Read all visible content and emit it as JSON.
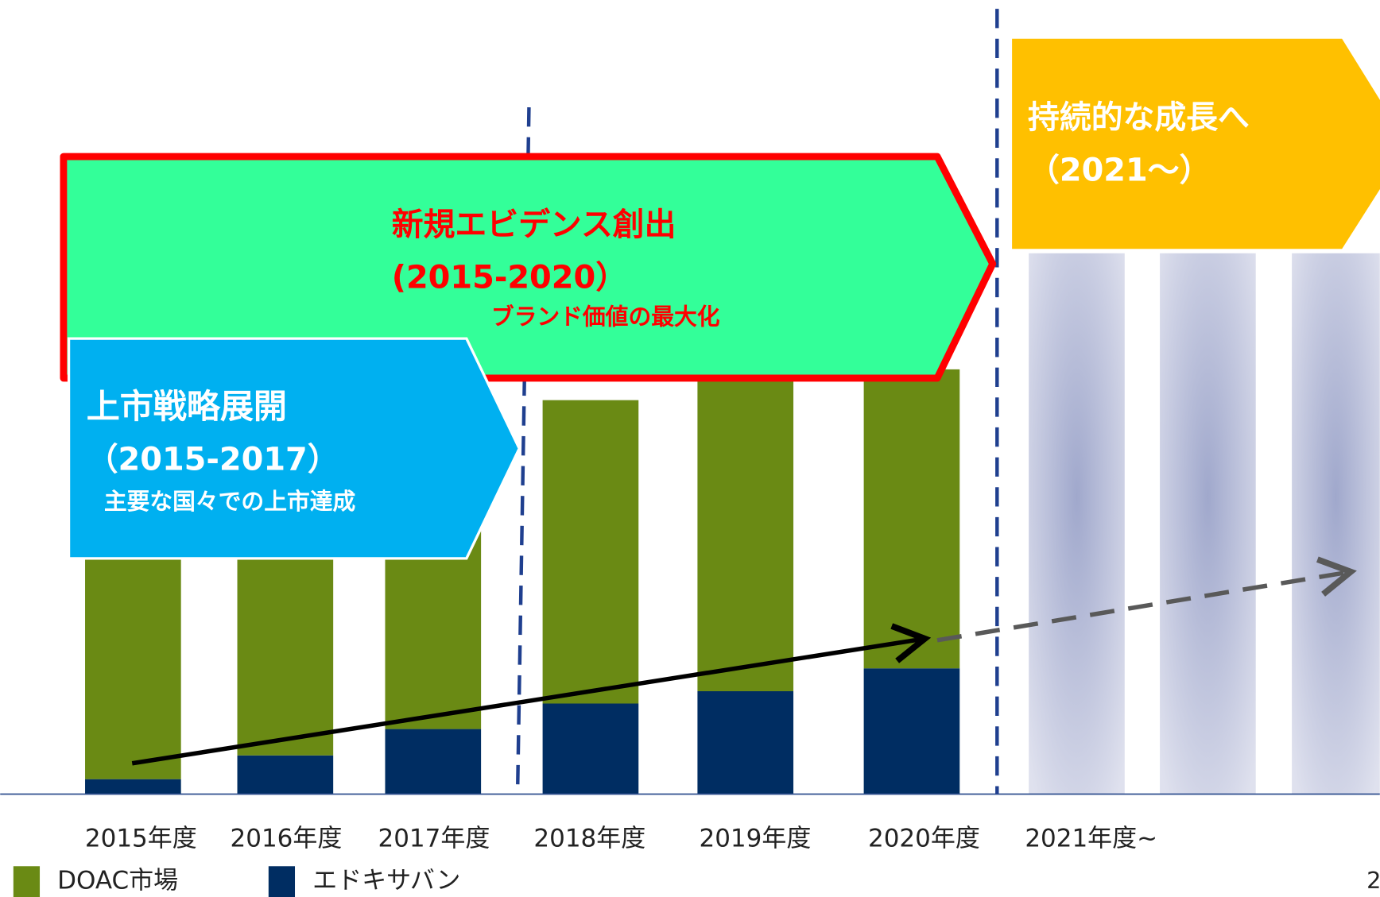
{
  "chart_data": {
    "type": "bar",
    "stacked": true,
    "categories": [
      "2015年度",
      "2016年度",
      "2017年度",
      "2018年度",
      "2019年度",
      "2020年度",
      "2021年度~"
    ],
    "series": [
      {
        "name": "DOAC市場",
        "color": "#6a8a14",
        "values": [
          66.6,
          66.2,
          65.2,
          69,
          71.2,
          68,
          null
        ]
      },
      {
        "name": "エドキサバン",
        "color": "#002d62",
        "values": [
          3.4,
          8.8,
          14.8,
          20.6,
          23.4,
          28.6,
          null
        ]
      }
    ],
    "ylim": [
      0,
      100
    ],
    "annotations": {
      "evidence": {
        "title": "新規エビデンス創出",
        "period": "(2015-2020）",
        "subtitle": "ブランド価値の最大化"
      },
      "launch": {
        "title": "上市戦略展開",
        "period": "（2015-2017）",
        "subtitle": "主要な国々での上市達成"
      },
      "growth": {
        "title": "持続的な成長へ",
        "period": "（2021～）"
      }
    },
    "page_number": "2"
  }
}
